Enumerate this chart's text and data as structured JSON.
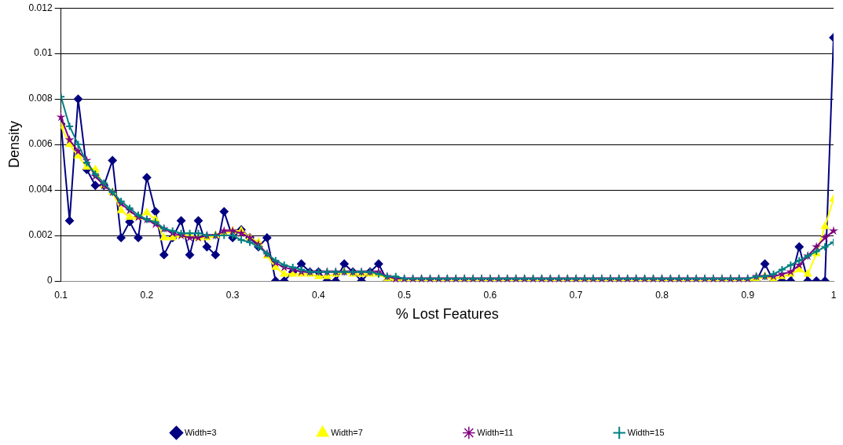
{
  "chart_data": {
    "type": "line",
    "xlabel": "% Lost Features",
    "ylabel": "Density",
    "x": [
      0.1,
      0.11,
      0.12,
      0.13,
      0.14,
      0.15,
      0.16,
      0.17,
      0.18,
      0.19,
      0.2,
      0.21,
      0.22,
      0.23,
      0.24,
      0.25,
      0.26,
      0.27,
      0.28,
      0.29,
      0.3,
      0.31,
      0.32,
      0.33,
      0.34,
      0.35,
      0.36,
      0.37,
      0.38,
      0.39,
      0.4,
      0.41,
      0.42,
      0.43,
      0.44,
      0.45,
      0.46,
      0.47,
      0.48,
      0.49,
      0.5,
      0.51,
      0.52,
      0.53,
      0.54,
      0.55,
      0.56,
      0.57,
      0.58,
      0.59,
      0.6,
      0.61,
      0.62,
      0.63,
      0.64,
      0.65,
      0.66,
      0.67,
      0.68,
      0.69,
      0.7,
      0.71,
      0.72,
      0.73,
      0.74,
      0.75,
      0.76,
      0.77,
      0.78,
      0.79,
      0.8,
      0.81,
      0.82,
      0.83,
      0.84,
      0.85,
      0.86,
      0.87,
      0.88,
      0.89,
      0.9,
      0.91,
      0.92,
      0.93,
      0.94,
      0.95,
      0.96,
      0.97,
      0.98,
      0.99,
      1
    ],
    "series": [
      {
        "name": "Width=3",
        "color": "#000080",
        "marker": "diamond",
        "values": [
          0.0069,
          0.00265,
          0.008,
          0.0049,
          0.0042,
          0.0042,
          0.0053,
          0.0019,
          0.0026,
          0.0019,
          0.00455,
          0.00305,
          0.00115,
          0.0019,
          0.00265,
          0.00115,
          0.00265,
          0.0015,
          0.00115,
          0.00305,
          0.0019,
          0.00225,
          0.0019,
          0.0015,
          0.0019,
          0,
          0,
          0.0004,
          0.00075,
          0.0004,
          0.0004,
          0,
          0,
          0.00075,
          0.0004,
          0,
          0.0004,
          0.00075,
          0,
          0,
          0,
          0,
          0,
          0,
          0,
          0,
          0,
          0,
          0,
          0,
          0,
          0,
          0,
          0,
          0,
          0,
          0,
          0,
          0,
          0,
          0,
          0,
          0,
          0,
          0,
          0,
          0,
          0,
          0,
          0,
          0,
          0,
          0,
          0,
          0,
          0,
          0,
          0,
          0,
          0,
          0,
          0,
          0.00075,
          0,
          0,
          0,
          0.0015,
          0,
          0,
          0,
          0.0107
        ]
      },
      {
        "name": "Width=7",
        "color": "#ffff00",
        "marker": "triangle",
        "values": [
          0.0068,
          0.006,
          0.0055,
          0.005,
          0.0049,
          0.0042,
          0.0039,
          0.0031,
          0.0028,
          0.0028,
          0.003,
          0.0027,
          0.0019,
          0.0019,
          0.002,
          0.002,
          0.0019,
          0.0019,
          0.002,
          0.0021,
          0.0022,
          0.0022,
          0.0019,
          0.0017,
          0.0011,
          0.0006,
          0.0003,
          0.0003,
          0.0003,
          0.0003,
          0.0002,
          0.0002,
          0.0003,
          0.0004,
          0.0003,
          0.0003,
          0.0003,
          0.0003,
          0.0001,
          0.0001,
          0,
          0,
          0,
          0,
          0,
          0,
          0,
          0,
          0,
          0,
          0,
          0,
          0,
          0,
          0,
          0,
          0,
          0,
          0,
          0,
          0,
          0,
          0,
          0,
          0,
          0,
          0,
          0,
          0,
          0,
          0,
          0,
          0,
          0,
          0,
          0,
          0,
          0,
          0,
          0,
          0,
          0.0001,
          0.0002,
          0.0001,
          0.0002,
          0.0003,
          0.0005,
          0.0003,
          0.0012,
          0.0024,
          0.0036
        ]
      },
      {
        "name": "Width=11",
        "color": "#800080",
        "marker": "star",
        "values": [
          0.0072,
          0.0062,
          0.0057,
          0.0053,
          0.0046,
          0.0042,
          0.0039,
          0.0034,
          0.0031,
          0.0028,
          0.0027,
          0.0025,
          0.0023,
          0.0021,
          0.002,
          0.0019,
          0.0019,
          0.002,
          0.002,
          0.0022,
          0.0022,
          0.0021,
          0.0019,
          0.0016,
          0.0012,
          0.0008,
          0.0006,
          0.0005,
          0.0004,
          0.0004,
          0.0004,
          0.0004,
          0.0004,
          0.0004,
          0.0004,
          0.0004,
          0.0004,
          0.0004,
          0.0002,
          0.0001,
          0.0001,
          0.0001,
          0.0001,
          0.0001,
          0.0001,
          0.0001,
          0.0001,
          0.0001,
          0.0001,
          0.0001,
          0.0001,
          0.0001,
          0.0001,
          0.0001,
          0.0001,
          0.0001,
          0.0001,
          0.0001,
          0.0001,
          0.0001,
          0.0001,
          0.0001,
          0.0001,
          0.0001,
          0.0001,
          0.0001,
          0.0001,
          0.0001,
          0.0001,
          0.0001,
          0.0001,
          0.0001,
          0.0001,
          0.0001,
          0.0001,
          0.0001,
          0.0001,
          0.0001,
          0.0001,
          0.0001,
          0.0001,
          0.0002,
          0.0002,
          0.0002,
          0.0003,
          0.0004,
          0.0007,
          0.0011,
          0.0015,
          0.0019,
          0.0022
        ]
      },
      {
        "name": "Width=15",
        "color": "#008080",
        "marker": "cross",
        "values": [
          0.0081,
          0.0068,
          0.006,
          0.0052,
          0.0047,
          0.0043,
          0.0039,
          0.0035,
          0.0032,
          0.0029,
          0.0027,
          0.0026,
          0.0023,
          0.0022,
          0.0021,
          0.0021,
          0.0021,
          0.002,
          0.002,
          0.002,
          0.002,
          0.0018,
          0.0017,
          0.0015,
          0.0012,
          0.0009,
          0.0007,
          0.0006,
          0.0005,
          0.0004,
          0.0004,
          0.0004,
          0.0004,
          0.0004,
          0.0004,
          0.0004,
          0.0004,
          0.0003,
          0.0002,
          0.0002,
          0.0001,
          0.0001,
          0.0001,
          0.0001,
          0.0001,
          0.0001,
          0.0001,
          0.0001,
          0.0001,
          0.0001,
          0.0001,
          0.0001,
          0.0001,
          0.0001,
          0.0001,
          0.0001,
          0.0001,
          0.0001,
          0.0001,
          0.0001,
          0.0001,
          0.0001,
          0.0001,
          0.0001,
          0.0001,
          0.0001,
          0.0001,
          0.0001,
          0.0001,
          0.0001,
          0.0001,
          0.0001,
          0.0001,
          0.0001,
          0.0001,
          0.0001,
          0.0001,
          0.0001,
          0.0001,
          0.0001,
          0.0001,
          0.0002,
          0.0002,
          0.0003,
          0.0005,
          0.0007,
          0.0009,
          0.0011,
          0.0013,
          0.0015,
          0.0017
        ]
      }
    ],
    "xlim": [
      0.1,
      1
    ],
    "xticks": [
      0.1,
      0.2,
      0.3,
      0.4,
      0.5,
      0.6,
      0.7,
      0.8,
      0.9,
      1
    ],
    "ylim": [
      0,
      0.012
    ],
    "yticks": [
      0,
      0.002,
      0.004,
      0.006,
      0.008,
      0.01,
      0.012
    ],
    "grid": "y",
    "legend": "bottom",
    "line_style": "solid"
  }
}
